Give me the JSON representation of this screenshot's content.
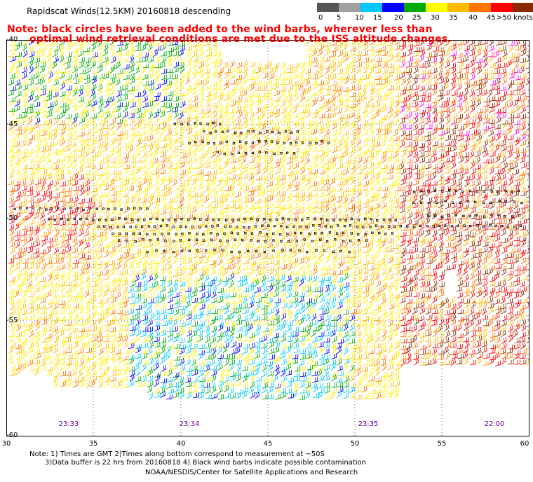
{
  "header": {
    "title": "Rapidscat Winds(12.5KM) 20160818 descending",
    "note_line1": "Note: black circles have been added to the wind barbs, wherever less than",
    "note_line2": "optimal wind retrieval conditions are met due to the ISS altitude changes."
  },
  "legend": {
    "unit": "knots",
    "labels": [
      "0",
      "5",
      "10",
      "15",
      "20",
      "25",
      "30",
      "35",
      "40",
      "45",
      ">50 knots"
    ],
    "colors": [
      "#000000",
      "#8c8c8c",
      "#00c8ff",
      "#0000ff",
      "#00aa00",
      "#ffff00",
      "#ffbb00",
      "#ff7700",
      "#ff0000",
      "#8b2a00",
      "#ff00ff",
      "#7700aa"
    ]
  },
  "map": {
    "lat_labels": [
      "-40",
      "-45",
      "-50",
      "-55",
      "-60"
    ],
    "lon_labels": [
      "30",
      "35",
      "40",
      "45",
      "50",
      "55",
      "60"
    ],
    "lat_range": [
      -40,
      -60
    ],
    "lon_range": [
      30,
      60
    ],
    "time_labels": [
      {
        "text": "23:33",
        "lon": 33.6
      },
      {
        "text": "23:34",
        "lon": 40.5
      },
      {
        "text": "23:35",
        "lon": 50.8
      },
      {
        "text": "22:00",
        "lon": 58.0
      }
    ]
  },
  "footer": {
    "line1": "Note: 1) Times are GMT 2)Times along bottom correspond to measurement at ~50S",
    "line2": "3)Data buffer is 22 hrs from 20160818 4) Black wind barbs indicate possible contamination",
    "credit": "NOAA/NESDIS/Center for Satellite Applications and Research"
  }
}
